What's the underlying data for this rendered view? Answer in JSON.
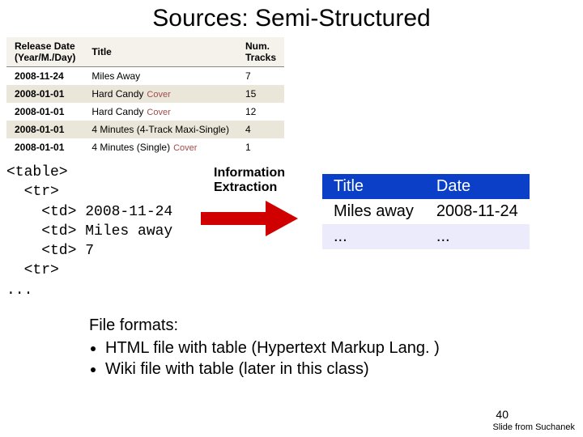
{
  "title": "Sources: Semi-Structured",
  "source_table": {
    "columns": [
      "Release Date\n(Year/M./Day)",
      "Title",
      "Num.\nTracks"
    ],
    "rows": [
      {
        "date": "2008-11-24",
        "title": "Miles Away",
        "tracks": "7",
        "cover": false
      },
      {
        "date": "2008-01-01",
        "title": "Hard Candy",
        "tracks": "15",
        "cover": true
      },
      {
        "date": "2008-01-01",
        "title": "Hard Candy",
        "tracks": "12",
        "cover": true
      },
      {
        "date": "2008-01-01",
        "title": "4 Minutes (4-Track Maxi-Single)",
        "tracks": "4",
        "cover": false
      },
      {
        "date": "2008-01-01",
        "title": "4 Minutes (Single)",
        "tracks": "1",
        "cover": true
      }
    ],
    "cover_label": "Cover",
    "header_bg": "#f5f2eb",
    "row_bg_odd": "#ffffff",
    "row_bg_even": "#eae6da",
    "cover_color": "#a04c4c"
  },
  "code": {
    "l1": "<table>",
    "l2": "  <tr>",
    "l3": "    <td> 2008-11-24",
    "l4": "    <td> Miles away",
    "l5": "    <td> 7",
    "l6": "  <tr>",
    "l7": "..."
  },
  "ie": {
    "label1": "Information",
    "label2": "Extraction",
    "arrow_color": "#d10000"
  },
  "result": {
    "header_bg": "#0b3fc7",
    "header_color": "#ffffff",
    "row_even_bg": "#ecebfb",
    "columns": [
      "Title",
      "Date"
    ],
    "rows": [
      [
        "Miles away",
        "2008-11-24"
      ],
      [
        "...",
        "..."
      ]
    ]
  },
  "footer": {
    "heading": "File formats:",
    "items": [
      "HTML file with table (Hypertext Markup Lang. )",
      "Wiki file with table (later in this class)"
    ]
  },
  "slide_number": "40",
  "credit": "Slide from Suchanek"
}
